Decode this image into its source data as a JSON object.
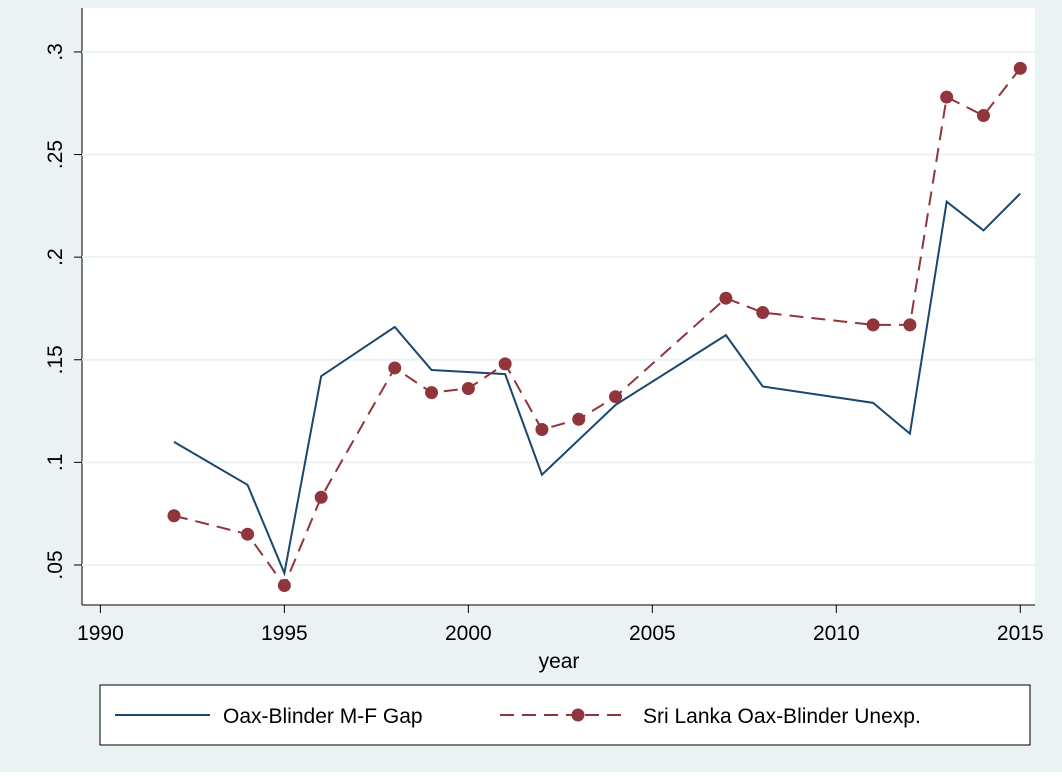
{
  "chart_data": {
    "type": "line",
    "xlabel": "year",
    "xlim": [
      1989.5,
      2015.4
    ],
    "xticks": [
      1990,
      1995,
      2000,
      2005,
      2010,
      2015
    ],
    "ylim": [
      0.0305,
      0.3214
    ],
    "yticks": [
      {
        "value": 0.05,
        "label": ".05"
      },
      {
        "value": 0.1,
        "label": ".1"
      },
      {
        "value": 0.15,
        "label": ".15"
      },
      {
        "value": 0.2,
        "label": ".2"
      },
      {
        "value": 0.25,
        "label": ".25"
      },
      {
        "value": 0.3,
        "label": ".3"
      }
    ],
    "grid": true,
    "legend": "bottom",
    "series": [
      {
        "name": "Oax-Blinder M-F Gap",
        "color": "#1a476f",
        "dashed": false,
        "markers": false,
        "x": [
          1992,
          1994,
          1995,
          1996,
          1998,
          1999,
          2001,
          2002,
          2004,
          2007,
          2008,
          2011,
          2012,
          2013,
          2014,
          2015
        ],
        "values": [
          0.11,
          0.089,
          0.046,
          0.142,
          0.166,
          0.145,
          0.143,
          0.094,
          0.128,
          0.162,
          0.137,
          0.129,
          0.114,
          0.227,
          0.213,
          0.231
        ]
      },
      {
        "name": "Sri Lanka Oax-Blinder Unexp.",
        "color": "#90353b",
        "dashed": true,
        "markers": true,
        "x": [
          1992,
          1994,
          1995,
          1996,
          1998,
          1999,
          2000,
          2001,
          2002,
          2003,
          2004,
          2007,
          2008,
          2011,
          2012,
          2013,
          2014,
          2015
        ],
        "values": [
          0.074,
          0.065,
          0.04,
          0.083,
          0.146,
          0.134,
          0.136,
          0.148,
          0.116,
          0.121,
          0.132,
          0.18,
          0.173,
          0.167,
          0.167,
          0.278,
          0.269,
          0.292
        ]
      }
    ]
  }
}
